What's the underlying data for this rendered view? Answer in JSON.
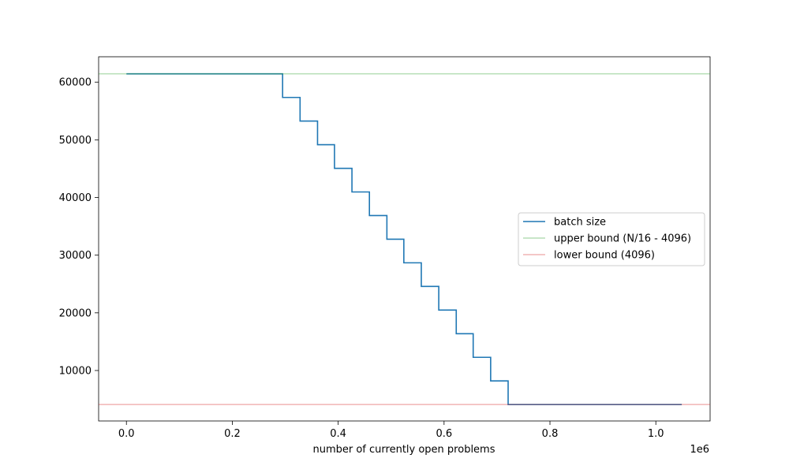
{
  "chart_data": {
    "type": "line",
    "title": "",
    "xlabel": "number of currently open problems",
    "ylabel": "",
    "x_offset_label": "1e6",
    "xlim": [
      -0.0525,
      1.1025
    ],
    "ylim": [
      1250,
      64400
    ],
    "x_ticks": [
      0.0,
      0.2,
      0.4,
      0.6,
      0.8,
      1.0
    ],
    "x_tick_labels": [
      "0.0",
      "0.2",
      "0.4",
      "0.6",
      "0.8",
      "1.0"
    ],
    "y_ticks": [
      10000,
      20000,
      30000,
      40000,
      50000,
      60000
    ],
    "y_tick_labels": [
      "10000",
      "20000",
      "30000",
      "40000",
      "50000",
      "60000"
    ],
    "grid": false,
    "legend_position": "center-right",
    "series": [
      {
        "name": "batch size",
        "color": "#1f77b4",
        "style": "step",
        "x": [
          0.0,
          0.295,
          0.295,
          0.328,
          0.328,
          0.361,
          0.361,
          0.393,
          0.393,
          0.426,
          0.426,
          0.459,
          0.459,
          0.492,
          0.492,
          0.524,
          0.524,
          0.557,
          0.557,
          0.59,
          0.59,
          0.623,
          0.623,
          0.655,
          0.655,
          0.688,
          0.688,
          0.721,
          0.721,
          1.049
        ],
        "y": [
          61440,
          61440,
          57344,
          57344,
          53248,
          53248,
          49152,
          49152,
          45056,
          45056,
          40960,
          40960,
          36864,
          36864,
          32768,
          32768,
          28672,
          28672,
          24576,
          24576,
          20480,
          20480,
          16384,
          16384,
          12288,
          12288,
          8192,
          8192,
          4096,
          4096
        ]
      },
      {
        "name": "upper bound (N/16 - 4096)",
        "color": "#2ca02c",
        "opacity": 0.35,
        "style": "hline",
        "y": 61440
      },
      {
        "name": "lower bound (4096)",
        "color": "#d62728",
        "opacity": 0.35,
        "style": "hline",
        "y": 4096
      }
    ]
  }
}
